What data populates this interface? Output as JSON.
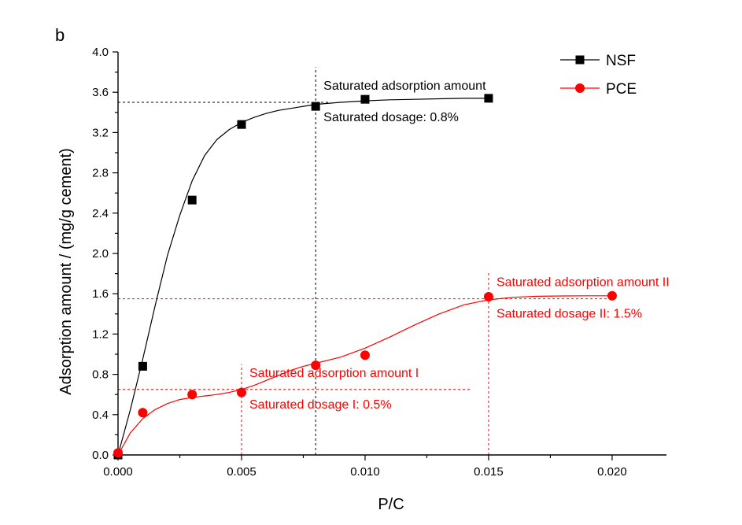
{
  "panel_label": "b",
  "colors": {
    "nsf": "#000000",
    "pce": "#ff0000"
  },
  "chart_data": {
    "type": "scatter",
    "xlabel": "P/C",
    "ylabel": "Adsorption amount / (mg/g cement)",
    "xlim": [
      0,
      0.0222
    ],
    "ylim": [
      0,
      4.0
    ],
    "xticks": [
      "0.000",
      "0.005",
      "0.010",
      "0.015",
      "0.020"
    ],
    "yticks": [
      "0.0",
      "0.4",
      "0.8",
      "1.2",
      "1.6",
      "2.0",
      "2.4",
      "2.8",
      "3.2",
      "3.6",
      "4.0"
    ],
    "legend_position": "top-right",
    "series": [
      {
        "name": "NSF",
        "marker": "square",
        "color": "#000000",
        "x": [
          0,
          0.001,
          0.003,
          0.005,
          0.008,
          0.01,
          0.015
        ],
        "y": [
          0.0,
          0.88,
          2.53,
          3.28,
          3.46,
          3.53,
          3.54
        ],
        "fit_x": [
          0,
          0.0005,
          0.001,
          0.0015,
          0.002,
          0.0025,
          0.003,
          0.0035,
          0.004,
          0.0045,
          0.005,
          0.0055,
          0.006,
          0.0065,
          0.007,
          0.0075,
          0.008,
          0.009,
          0.01,
          0.011,
          0.012,
          0.013,
          0.014,
          0.015
        ],
        "fit_y": [
          0.0,
          0.45,
          0.95,
          1.48,
          1.98,
          2.38,
          2.72,
          2.97,
          3.13,
          3.23,
          3.3,
          3.35,
          3.39,
          3.42,
          3.44,
          3.46,
          3.48,
          3.5,
          3.515,
          3.525,
          3.53,
          3.535,
          3.54,
          3.54
        ]
      },
      {
        "name": "PCE",
        "marker": "circle",
        "color": "#ff0000",
        "x": [
          0,
          0.001,
          0.003,
          0.005,
          0.008,
          0.01,
          0.015,
          0.02
        ],
        "y": [
          0.02,
          0.42,
          0.6,
          0.62,
          0.89,
          0.99,
          1.57,
          1.58
        ],
        "fit_x": [
          0,
          0.0005,
          0.001,
          0.0015,
          0.002,
          0.0025,
          0.003,
          0.0035,
          0.004,
          0.0045,
          0.005,
          0.0055,
          0.006,
          0.0065,
          0.007,
          0.0075,
          0.008,
          0.009,
          0.01,
          0.011,
          0.012,
          0.013,
          0.014,
          0.015,
          0.016,
          0.017,
          0.018,
          0.019,
          0.02
        ],
        "fit_y": [
          0.0,
          0.22,
          0.36,
          0.45,
          0.51,
          0.55,
          0.57,
          0.585,
          0.6,
          0.62,
          0.65,
          0.69,
          0.74,
          0.79,
          0.84,
          0.88,
          0.91,
          0.97,
          1.06,
          1.17,
          1.29,
          1.4,
          1.49,
          1.54,
          1.565,
          1.575,
          1.578,
          1.58,
          1.58
        ]
      }
    ],
    "annotations": [
      {
        "series": "NSF",
        "label_top": "Saturated adsorption amount",
        "label_bottom": "Saturated dosage: 0.8%",
        "x": 0.008,
        "y": 3.5,
        "hline_from": 0,
        "hline_to": 0.0085,
        "vline_from": 0,
        "vline_to": 3.85
      },
      {
        "series": "PCE",
        "label_top": "Saturated adsorption amount I",
        "label_bottom": "Saturated dosage I: 0.5%",
        "x": 0.005,
        "y": 0.65,
        "hline_from": 0,
        "hline_to": 0.0143,
        "vline_from": 0,
        "vline_to": 0.9
      },
      {
        "series": "PCE",
        "label_top": "Saturated adsorption amount II",
        "label_bottom": "Saturated dosage II: 1.5%",
        "x": 0.015,
        "y": 1.55,
        "hline_from": 0,
        "hline_to": 0.02,
        "vline_from": 0,
        "vline_to": 1.81
      }
    ]
  }
}
